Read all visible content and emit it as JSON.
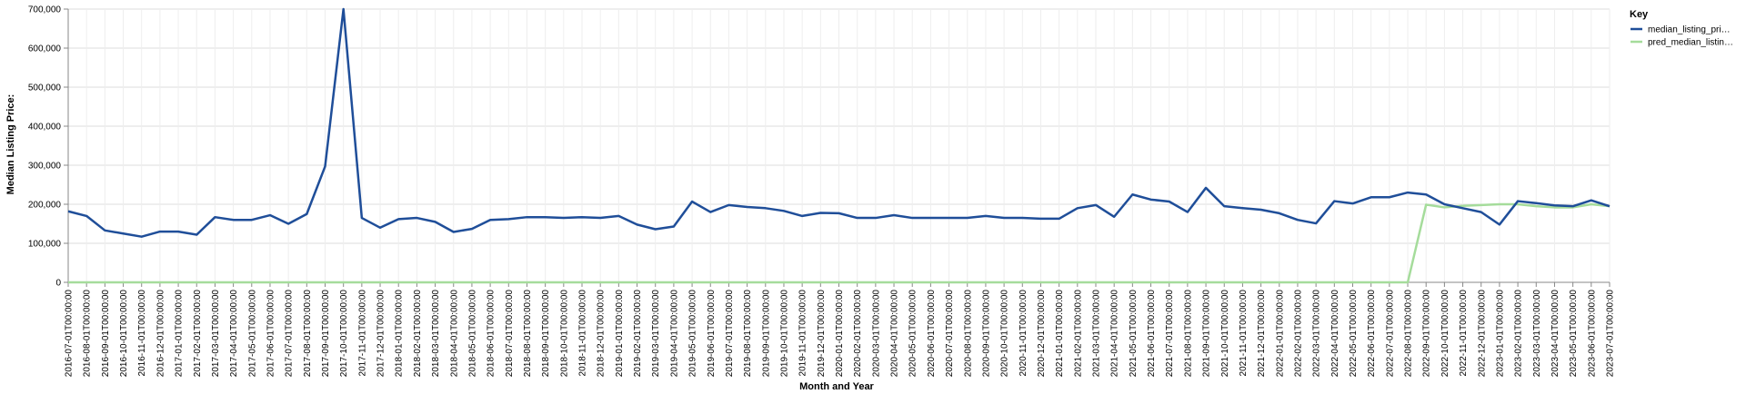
{
  "chart_data": {
    "type": "line",
    "title": "",
    "xlabel": "Month and Year",
    "ylabel": "Median Listing Price:",
    "ylim": [
      0,
      700000
    ],
    "yticks": [
      0,
      100000,
      200000,
      300000,
      400000,
      500000,
      600000,
      700000
    ],
    "ytick_labels": [
      "0",
      "100,000",
      "200,000",
      "300,000",
      "400,000",
      "500,000",
      "600,000",
      "700,000"
    ],
    "grid": true,
    "legend": {
      "title": "Key",
      "placement": "right",
      "entries": [
        {
          "label": "median_listing_pri…",
          "color": "#1f4e99"
        },
        {
          "label": "pred_median_listin…",
          "color": "#a5dc9b"
        }
      ]
    },
    "x": [
      "2016-07-01T00:00:00",
      "2016-08-01T00:00:00",
      "2016-09-01T00:00:00",
      "2016-10-01T00:00:00",
      "2016-11-01T00:00:00",
      "2016-12-01T00:00:00",
      "2017-01-01T00:00:00",
      "2017-02-01T00:00:00",
      "2017-03-01T00:00:00",
      "2017-04-01T00:00:00",
      "2017-05-01T00:00:00",
      "2017-06-01T00:00:00",
      "2017-07-01T00:00:00",
      "2017-08-01T00:00:00",
      "2017-09-01T00:00:00",
      "2017-10-01T00:00:00",
      "2017-11-01T00:00:00",
      "2017-12-01T00:00:00",
      "2018-01-01T00:00:00",
      "2018-02-01T00:00:00",
      "2018-03-01T00:00:00",
      "2018-04-01T00:00:00",
      "2018-05-01T00:00:00",
      "2018-06-01T00:00:00",
      "2018-07-01T00:00:00",
      "2018-08-01T00:00:00",
      "2018-09-01T00:00:00",
      "2018-10-01T00:00:00",
      "2018-11-01T00:00:00",
      "2018-12-01T00:00:00",
      "2019-01-01T00:00:00",
      "2019-02-01T00:00:00",
      "2019-03-01T00:00:00",
      "2019-04-01T00:00:00",
      "2019-05-01T00:00:00",
      "2019-06-01T00:00:00",
      "2019-07-01T00:00:00",
      "2019-08-01T00:00:00",
      "2019-09-01T00:00:00",
      "2019-10-01T00:00:00",
      "2019-11-01T00:00:00",
      "2019-12-01T00:00:00",
      "2020-01-01T00:00:00",
      "2020-02-01T00:00:00",
      "2020-03-01T00:00:00",
      "2020-04-01T00:00:00",
      "2020-05-01T00:00:00",
      "2020-06-01T00:00:00",
      "2020-07-01T00:00:00",
      "2020-08-01T00:00:00",
      "2020-09-01T00:00:00",
      "2020-10-01T00:00:00",
      "2020-11-01T00:00:00",
      "2020-12-01T00:00:00",
      "2021-01-01T00:00:00",
      "2021-02-01T00:00:00",
      "2021-03-01T00:00:00",
      "2021-04-01T00:00:00",
      "2021-05-01T00:00:00",
      "2021-06-01T00:00:00",
      "2021-07-01T00:00:00",
      "2021-08-01T00:00:00",
      "2021-09-01T00:00:00",
      "2021-10-01T00:00:00",
      "2021-11-01T00:00:00",
      "2021-12-01T00:00:00",
      "2022-01-01T00:00:00",
      "2022-02-01T00:00:00",
      "2022-03-01T00:00:00",
      "2022-04-01T00:00:00",
      "2022-05-01T00:00:00",
      "2022-06-01T00:00:00",
      "2022-07-01T00:00:00",
      "2022-08-01T00:00:00",
      "2022-09-01T00:00:00",
      "2022-10-01T00:00:00",
      "2022-11-01T00:00:00",
      "2022-12-01T00:00:00",
      "2023-01-01T00:00:00",
      "2023-02-01T00:00:00",
      "2023-03-01T00:00:00",
      "2023-04-01T00:00:00",
      "2023-05-01T00:00:00",
      "2023-06-01T00:00:00",
      "2023-07-01T00:00:00"
    ],
    "series": [
      {
        "name": "median_listing_pri…",
        "color": "#1f4e99",
        "values": [
          182000,
          170000,
          133000,
          125000,
          117000,
          130000,
          130000,
          122000,
          167000,
          160000,
          160000,
          172000,
          150000,
          175000,
          297000,
          700000,
          165000,
          140000,
          162000,
          165000,
          155000,
          129000,
          137000,
          160000,
          162000,
          167000,
          167000,
          165000,
          167000,
          165000,
          170000,
          148000,
          136000,
          143000,
          207000,
          180000,
          198000,
          193000,
          190000,
          183000,
          170000,
          178000,
          177000,
          165000,
          165000,
          172000,
          165000,
          165000,
          165000,
          165000,
          170000,
          165000,
          165000,
          163000,
          163000,
          190000,
          198000,
          168000,
          225000,
          212000,
          207000,
          180000,
          242000,
          195000,
          190000,
          186000,
          177000,
          160000,
          151000,
          208000,
          202000,
          218000,
          218000,
          230000,
          225000,
          200000,
          190000,
          180000,
          148000,
          208000,
          203000,
          197000,
          195000,
          210000,
          195000
        ]
      },
      {
        "name": "pred_median_listin…",
        "color": "#a5dc9b",
        "values": [
          0,
          0,
          0,
          0,
          0,
          0,
          0,
          0,
          0,
          0,
          0,
          0,
          0,
          0,
          0,
          0,
          0,
          0,
          0,
          0,
          0,
          0,
          0,
          0,
          0,
          0,
          0,
          0,
          0,
          0,
          0,
          0,
          0,
          0,
          0,
          0,
          0,
          0,
          0,
          0,
          0,
          0,
          0,
          0,
          0,
          0,
          0,
          0,
          0,
          0,
          0,
          0,
          0,
          0,
          0,
          0,
          0,
          0,
          0,
          0,
          0,
          0,
          0,
          0,
          0,
          0,
          0,
          0,
          0,
          0,
          0,
          0,
          0,
          0,
          199000,
          192000,
          196000,
          198000,
          200000,
          200000,
          195000,
          192000,
          192000,
          200000,
          195000
        ]
      }
    ]
  }
}
